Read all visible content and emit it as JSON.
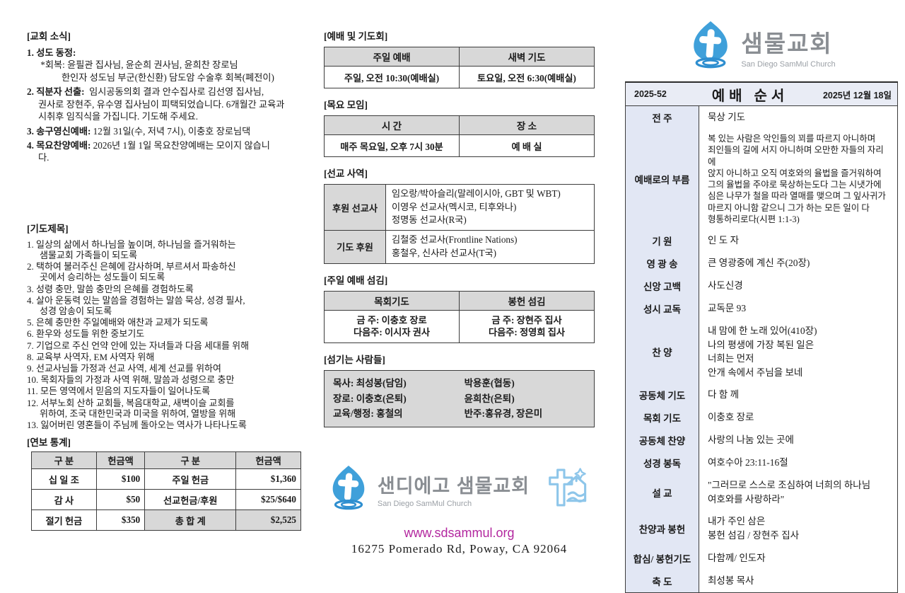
{
  "colors": {
    "accent_blue": "#3fa0da",
    "logo_gray": "#8a8e93",
    "link_magenta": "#b3279f",
    "table_header_gray": "#d8d8d8",
    "panel_label_blue": "#e2e7f4"
  },
  "left": {
    "church_news": {
      "title": "[교회 소식]",
      "items": [
        {
          "head": "1. 성도 동정:",
          "body": "\n *회복: 윤필관 집사님, 윤순희 권사님, 윤희찬 장로님\n          한인자 성도님 부군(한신환) 담도암 수술후 회복(폐전이)"
        },
        {
          "head": "2. 직분자 선출:",
          "body": "  임시공동의회 결과 안수집사로 김선영 집사님,\n권사로 장현주, 유수영 집사님이 피택되었습니다. 6개월간 교육과\n시취후 임직식을 가집니다. 기도해 주세요."
        },
        {
          "head": "3. 송구영신예배:",
          "body": " 12월 31일(수, 저녁 7시), 이충호 장로님댁"
        },
        {
          "head": "4. 목요찬양예배:",
          "body": " 2026년 1월 1일 목요찬양예배는 모이지 않습니\n다."
        }
      ]
    },
    "prayer": {
      "title": "[기도제목]",
      "items": [
        "1. 일상의 삶에서 하나님을 높이며, 하나님을 즐거워하는\n샘물교회 가족들이 되도록",
        "2. 택하여 불러주신 은혜에 감사하며, 부르셔서 파송하신\n곳에서 승리하는 성도들이 되도록",
        "3. 성령 충만, 말씀 충만의 은혜를 경험하도록",
        "4. 살아 운동력 있는 말씀을 경험하는 말씀 묵상, 성경 필사,\n성경 암송이 되도록",
        "5. 은혜 충만한 주일예배와 애찬과 교제가 되도록",
        "6. 환우와 성도들 위한 중보기도",
        "7. 기업으로 주신 언약 안에 있는 자녀들과 다음 세대를 위해",
        "8. 교육부 사역자, EM 사역자 위해",
        "9. 선교사님들 가정과 선교 사역, 세계 선교를 위하여",
        "10. 목회자들의 가정과 사역 위해, 말씀과 성령으로 충만",
        "11. 모든 영역에서 믿음의 지도자들이 일어나도록",
        "12. 서부노회 산하 교회들, 복음대학교, 새벽이슬 교회를\n위하여, 조국 대한민국과 미국을 위하여, 열방을 위해",
        "13. 잃어버린 영혼들이 주님께 돌아오는 역사가 나타나도록"
      ]
    },
    "offering": {
      "title": "[연보 통계]",
      "headers": [
        "구      분",
        "헌금액",
        "구      분",
        "헌금액"
      ],
      "rows": [
        [
          "십 일 조",
          "$100",
          "주일 헌금",
          "$1,360"
        ],
        [
          "감    사",
          "$50",
          "선교헌금/후원",
          "$25/$640"
        ],
        [
          "절기 헌금",
          "$350",
          "총 합 계",
          "$2,525"
        ]
      ]
    }
  },
  "middle": {
    "worship_prayer": {
      "title": "[예배 및 기도회]",
      "headers": [
        "주일 예배",
        "새벽 기도"
      ],
      "row": [
        "주일, 오전 10:30(예배실)",
        "토요일, 오전 6:30(예배실)"
      ]
    },
    "thursday": {
      "title": "[목요 모임]",
      "headers": [
        "시      간",
        "장      소"
      ],
      "row": [
        "매주 목요일, 오후 7시 30분",
        "예 배 실"
      ]
    },
    "mission": {
      "title": "[선교 사역]",
      "rows": [
        {
          "label": "후원 선교사",
          "lines": [
            "임오랑/박아슬리(말레이시아, GBT 및 WBT)",
            "이영우 선교사(멕시코, 티후와나)",
            "정명동 선교사(R국)"
          ]
        },
        {
          "label": "기도 후원",
          "lines": [
            "김철중 선교사(Frontline Nations)",
            "홍철우, 신사라 선교사(T국)"
          ]
        }
      ]
    },
    "sunday_serving": {
      "title": "[주일 예배 섬김]",
      "headers": [
        "목회기도",
        "봉헌 섬김"
      ],
      "cells": [
        {
          "lines": [
            "금  주: 이충호 장로",
            "다음주: 이시자 권사"
          ]
        },
        {
          "lines": [
            "금  주: 장현주 집사",
            "다음주: 정영희 집사"
          ]
        }
      ]
    },
    "servants": {
      "title": "[섬기는 사람들]",
      "rows": [
        [
          "목사: 최성봉(담임)",
          "박용훈(협동)"
        ],
        [
          "장로: 이충호(은퇴)",
          "윤희찬(은퇴)"
        ],
        [
          "교육/행정: 홍철의",
          "반주:홍유경, 장은미"
        ]
      ]
    },
    "footer": {
      "logo_korean": "샌디에고 샘물교회",
      "logo_english": "San Diego SamMul Church",
      "website": "www.sdsammul.org",
      "address": "16275 Pomerado Rd, Poway, CA 92064"
    }
  },
  "right": {
    "logo": {
      "korean": "샘물교회",
      "english": "San Diego SamMul Church"
    },
    "header": {
      "bulletin_no": "2025-52",
      "title": "예배 순서",
      "date": "2025년 12월 18일"
    },
    "rows": [
      {
        "label": "전      주",
        "lines": [
          "묵상 기도"
        ]
      },
      {
        "label": "예배로의 부름",
        "small": true,
        "lines": [
          "복 있는 사람은 악인들의 꾀를 따르지 아니하며",
          "죄인들의 길에 서지 아니하며 오만한 자들의 자리에",
          "앉지 아니하고 오직 여호와의 율법을 즐거워하여",
          "그의 율법을 주야로 묵상하는도다 그는 시냇가에",
          "심은 나무가 철을 따라 열매를 맺으며 그 잎사귀가",
          "마르지 아니함 같으니 그가 하는 모든 일이 다",
          "형통하리로다(시편 1:1-3)"
        ]
      },
      {
        "label": "기      원",
        "lines": [
          "인 도 자"
        ]
      },
      {
        "label": "영 광 송",
        "lines": [
          "큰 영광중에 계신 주(20장)"
        ]
      },
      {
        "label": "신앙 고백",
        "lines": [
          "사도신경"
        ]
      },
      {
        "label": "성시 교독",
        "lines": [
          "교독문 93"
        ]
      },
      {
        "label": "찬      양",
        "lines": [
          "내 맘에 한 노래 있어(410장)",
          "나의 평생에 가장 복된 일은",
          "너희는 먼저",
          "안개 속에서 주님을 보네"
        ]
      },
      {
        "label": "공동체 기도",
        "lines": [
          "다 함 께"
        ]
      },
      {
        "label": "목회 기도",
        "lines": [
          "이충호 장로"
        ]
      },
      {
        "label": "공동체 찬양",
        "lines": [
          "사랑의 나눔 있는 곳에"
        ]
      },
      {
        "label": "성경 봉독",
        "lines": [
          "여호수아  23:11-16절"
        ]
      },
      {
        "label": "설      교",
        "lines": [
          "\"그러므로 스스로 조심하여 너희의 하나님",
          "여호와를 사랑하라\""
        ]
      },
      {
        "label": "찬양과 봉헌",
        "lines": [
          "내가 주인 삼은",
          "봉헌 섬김 / 장현주 집사"
        ]
      },
      {
        "label": "합심/ 봉헌기도",
        "lines": [
          "다함께/ 인도자"
        ]
      },
      {
        "label": "축      도",
        "lines": [
          "최성봉 목사"
        ]
      }
    ]
  }
}
